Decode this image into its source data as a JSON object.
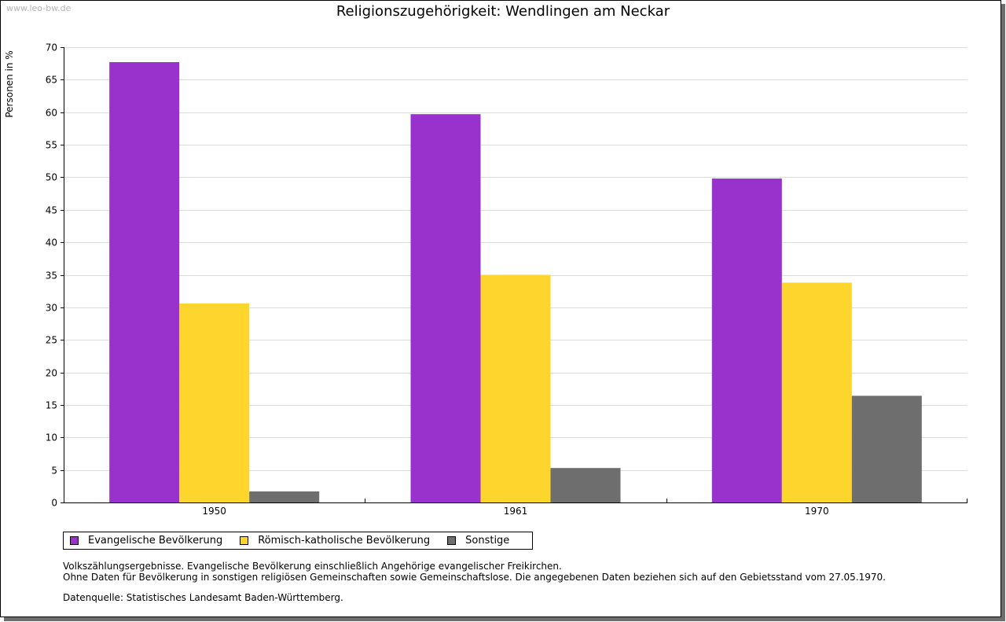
{
  "watermark": "www.leo-bw.de",
  "chart_data": {
    "type": "bar",
    "title": "Religionszugehörigkeit: Wendlingen am Neckar",
    "xlabel": "",
    "ylabel": "Personen in %",
    "ylim": [
      0,
      70
    ],
    "ytick_step": 5,
    "grid": true,
    "legend_position": "bottom-left",
    "categories": [
      "1950",
      "1961",
      "1970"
    ],
    "series": [
      {
        "name": "Evangelische Bevölkerung",
        "color": "#9932cc",
        "values": [
          67.7,
          59.7,
          49.8
        ]
      },
      {
        "name": "Römisch-katholische Bevölkerung",
        "color": "#fdd52d",
        "values": [
          30.6,
          35.0,
          33.8
        ]
      },
      {
        "name": "Sonstige",
        "color": "#6e6e6e",
        "values": [
          1.7,
          5.3,
          16.4
        ]
      }
    ]
  },
  "notes": {
    "line1": "Volkszählungsergebnisse. Evangelische Bevölkerung einschließlich Angehörige evangelischer Freikirchen.",
    "line2": "Ohne Daten für Bevölkerung in sonstigen religiösen Gemeinschaften sowie Gemeinschaftslose. Die angegebenen Daten beziehen sich auf den Gebietsstand vom 27.05.1970.",
    "source": "Datenquelle: Statistisches Landesamt Baden-Württemberg."
  }
}
